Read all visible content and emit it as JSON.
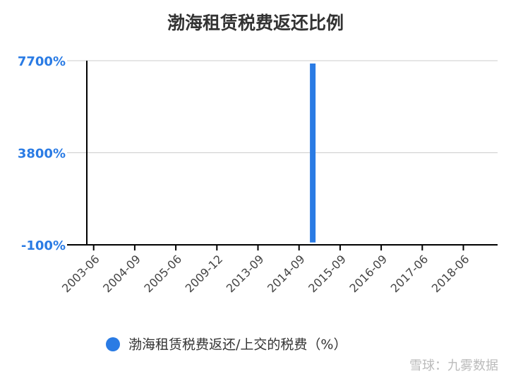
{
  "chart_data": {
    "type": "bar",
    "title": "渤海租赁税费返还比例",
    "categories": [
      "2003-06",
      null,
      null,
      "2004-09",
      null,
      null,
      "2005-06",
      null,
      null,
      "2009-12",
      null,
      null,
      "2013-09",
      null,
      null,
      "2014-09",
      null,
      null,
      "2015-09",
      null,
      null,
      "2016-09",
      null,
      null,
      "2017-06",
      null,
      null,
      "2018-06",
      null,
      null
    ],
    "series": [
      {
        "name": "渤海租赁税费返还/上交的税费（%）",
        "color": "#2a7be4",
        "values": [
          null,
          null,
          null,
          null,
          null,
          null,
          null,
          null,
          null,
          null,
          null,
          null,
          null,
          null,
          null,
          null,
          7580,
          null,
          null,
          null,
          null,
          null,
          null,
          null,
          null,
          null,
          null,
          null,
          null,
          null
        ]
      }
    ],
    "ylim": [
      -100,
      7700
    ],
    "yticks": [
      {
        "value": -100,
        "label": "-100%"
      },
      {
        "value": 3800,
        "label": "3800%"
      },
      {
        "value": 7700,
        "label": "7700%"
      }
    ],
    "grid": true,
    "legend": "bottom",
    "watermark": "雪球：九雾数据"
  }
}
